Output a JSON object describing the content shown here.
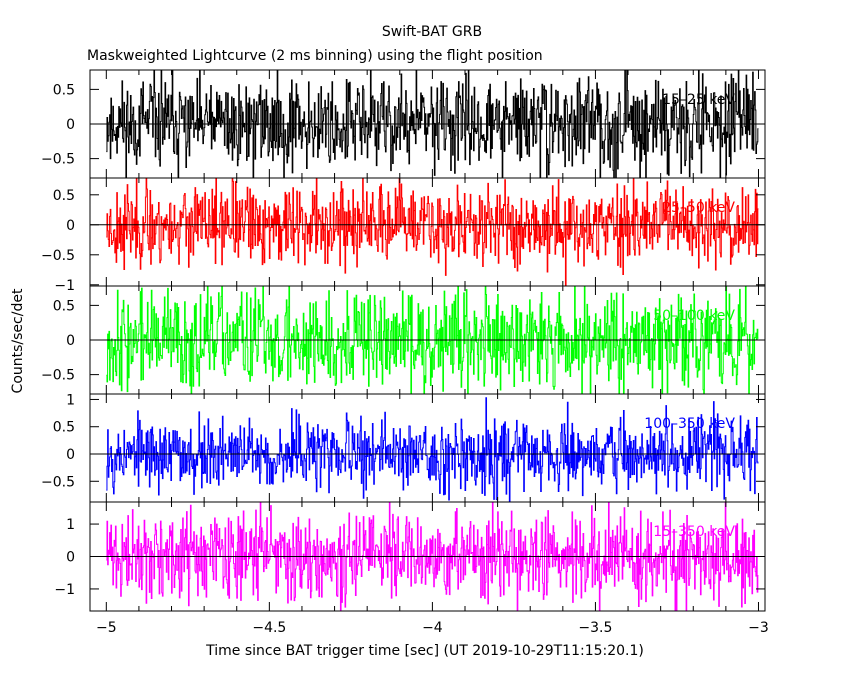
{
  "chart_data": {
    "type": "line",
    "title": "Swift-BAT GRB",
    "subtitle": "Maskweighted Lightcurve (2 ms binning) using the flight position",
    "xlabel": "Time since BAT trigger time [sec] (UT 2019-10-29T11:15:20.1)",
    "ylabel": "Counts/sec/det",
    "xlim": [
      -5.05,
      -2.98
    ],
    "xticks": [
      -5,
      -4.5,
      -4,
      -3.5,
      -3
    ],
    "xtick_labels": [
      "−5",
      "−4.5",
      "−4",
      "−3.5",
      "−3"
    ],
    "x_start": -5.0,
    "x_end": -3.0,
    "bin_width": 0.002,
    "panels": [
      {
        "name": "15-25 keV",
        "label": "15–25 keV",
        "color": "#000000",
        "ylim": [
          -0.78,
          0.78
        ],
        "yticks": [
          0.5,
          0,
          -0.5
        ],
        "ytick_labels": [
          "0.5",
          "0",
          "−0.5"
        ],
        "amplitude": 0.55,
        "seed": 11
      },
      {
        "name": "25-50 keV",
        "label": "25–50 keV",
        "color": "#ff0000",
        "ylim": [
          -1.02,
          0.78
        ],
        "yticks": [
          0.5,
          0,
          -0.5,
          -1
        ],
        "ytick_labels": [
          "0.5",
          "0",
          "−0.5",
          "−1"
        ],
        "amplitude": 0.55,
        "seed": 23
      },
      {
        "name": "50-100 keV",
        "label": "50–100 keV",
        "color": "#00ff00",
        "ylim": [
          -0.78,
          0.78
        ],
        "yticks": [
          0.5,
          0,
          -0.5
        ],
        "ytick_labels": [
          "0.5",
          "0",
          "−0.5"
        ],
        "amplitude": 0.6,
        "seed": 37
      },
      {
        "name": "100-350 keV",
        "label": "100–350 keV",
        "color": "#0000ff",
        "ylim": [
          -0.88,
          1.1
        ],
        "yticks": [
          1,
          0.5,
          0,
          -0.5
        ],
        "ytick_labels": [
          "1",
          "0.5",
          "0",
          "−0.5"
        ],
        "amplitude": 0.55,
        "seed": 53
      },
      {
        "name": "15-350 keV",
        "label": "15–350 keV",
        "color": "#ff00ff",
        "ylim": [
          -1.68,
          1.68
        ],
        "yticks": [
          1,
          0,
          -1
        ],
        "ytick_labels": [
          "1",
          "0",
          "−1"
        ],
        "amplitude": 1.1,
        "seed": 71
      }
    ]
  }
}
